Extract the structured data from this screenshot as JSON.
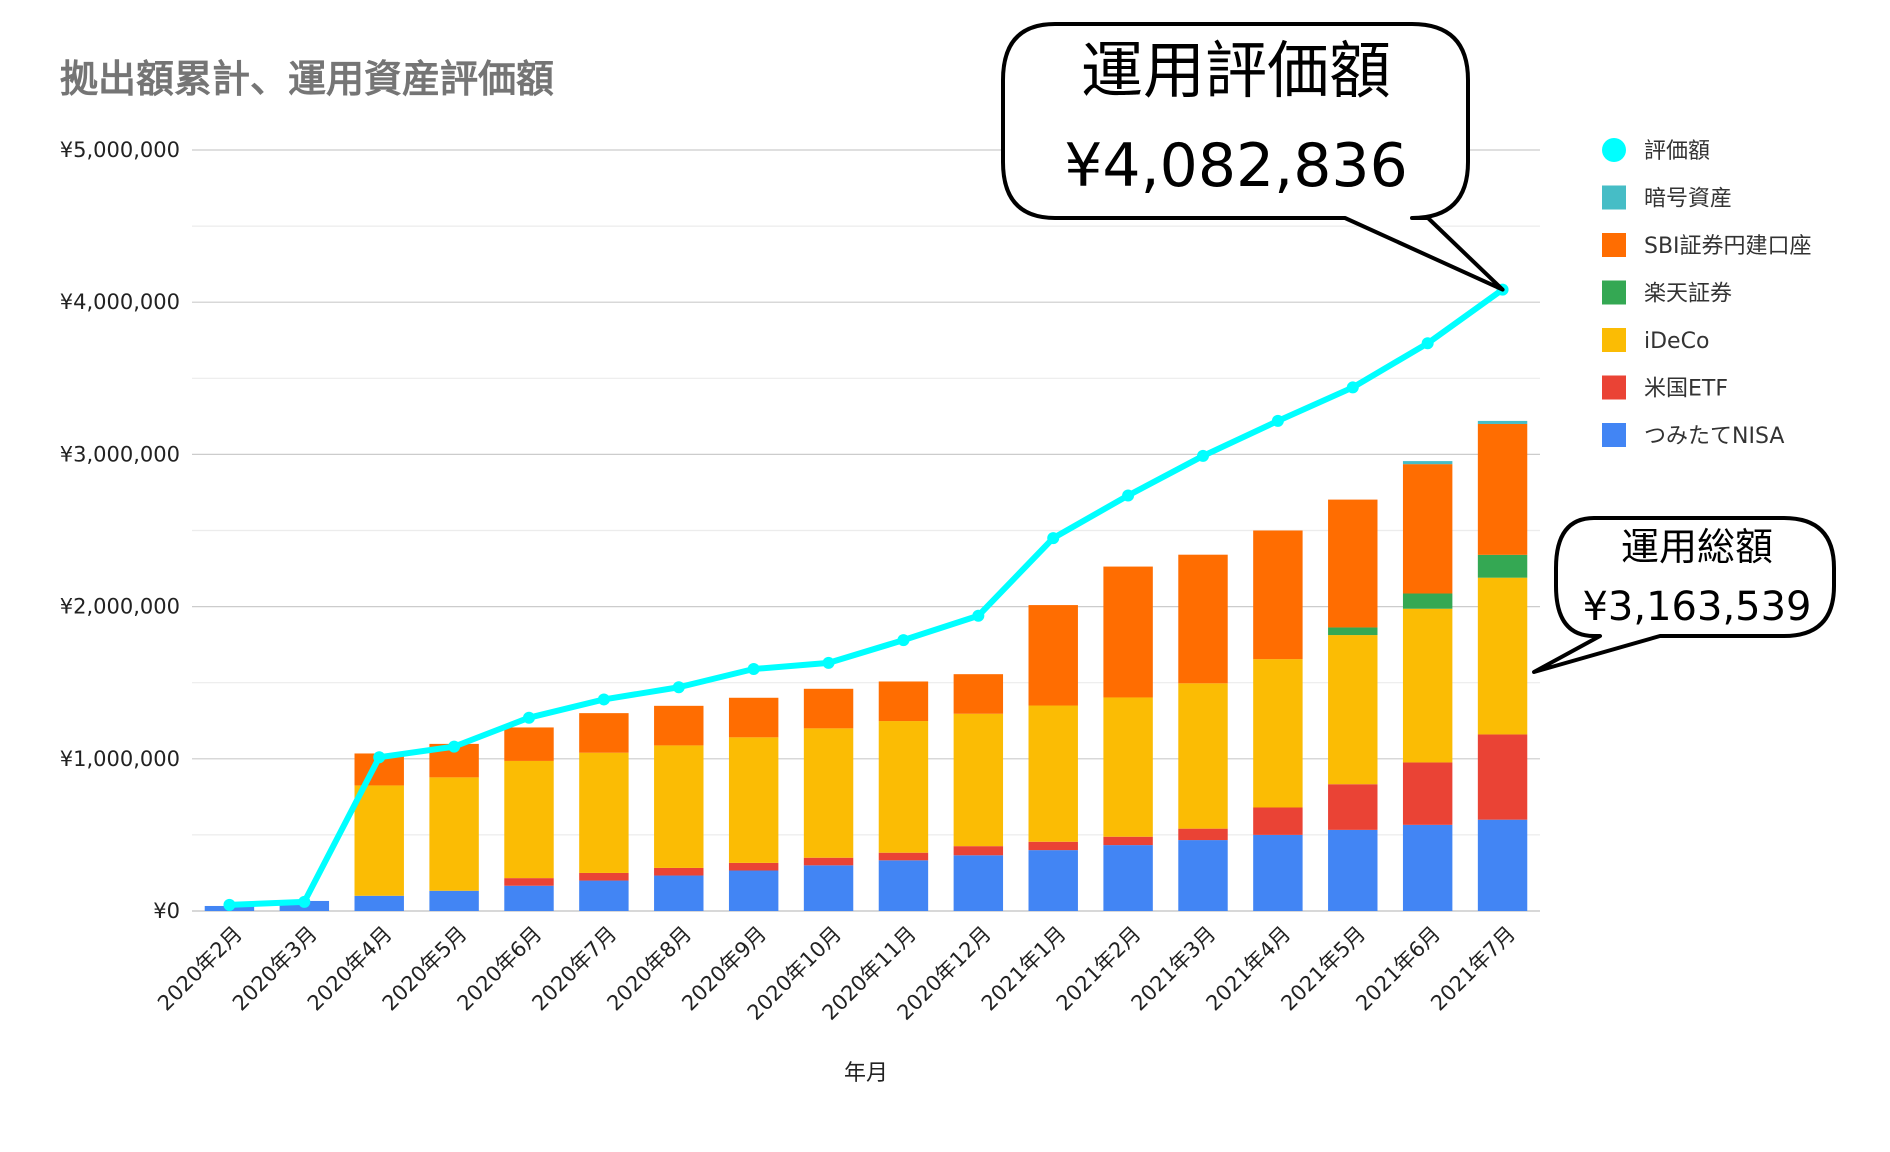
{
  "chart_data": {
    "type": "bar",
    "stacked": true,
    "title": "拠出額累計、運用資産評価額",
    "xlabel": "年月",
    "ylabel": "",
    "ylim": [
      0,
      5000000
    ],
    "yticks": [
      "¥0",
      "¥1,000,000",
      "¥2,000,000",
      "¥3,000,000",
      "¥4,000,000",
      "¥5,000,000"
    ],
    "grid": true,
    "legend_position": "right",
    "categories": [
      "2020年2月",
      "2020年3月",
      "2020年4月",
      "2020年5月",
      "2020年6月",
      "2020年7月",
      "2020年8月",
      "2020年9月",
      "2020年10月",
      "2020年11月",
      "2020年12月",
      "2021年1月",
      "2021年2月",
      "2021年3月",
      "2021年4月",
      "2021年5月",
      "2021年6月",
      "2021年7月"
    ],
    "series": [
      {
        "name": "つみたてNISA",
        "color": "#4285F4",
        "values": [
          33000,
          66000,
          100000,
          133000,
          166000,
          200000,
          233000,
          266000,
          300000,
          333000,
          366000,
          400000,
          433000,
          466000,
          500000,
          533000,
          566000,
          600000
        ]
      },
      {
        "name": "米国ETF",
        "color": "#EA4335",
        "values": [
          0,
          0,
          0,
          0,
          50000,
          50000,
          50000,
          50000,
          50000,
          50000,
          60000,
          55000,
          55000,
          75000,
          180000,
          300000,
          410000,
          560000
        ]
      },
      {
        "name": "iDeCo",
        "color": "#FBBC04",
        "values": [
          0,
          0,
          725000,
          745000,
          770000,
          790000,
          805000,
          825000,
          850000,
          865000,
          870000,
          895000,
          915000,
          955000,
          975000,
          980000,
          1010000,
          1030000
        ]
      },
      {
        "name": "楽天証券",
        "color": "#34A853",
        "values": [
          0,
          0,
          0,
          0,
          0,
          0,
          0,
          0,
          0,
          0,
          0,
          0,
          0,
          0,
          0,
          50000,
          100000,
          150000
        ]
      },
      {
        "name": "SBI証券円建口座",
        "color": "#FF6D01",
        "values": [
          0,
          0,
          210000,
          220000,
          220000,
          260000,
          260000,
          260000,
          260000,
          260000,
          260000,
          660000,
          860000,
          845000,
          845000,
          840000,
          850000,
          860000
        ]
      },
      {
        "name": "暗号資産",
        "color": "#46BDC6",
        "values": [
          0,
          0,
          0,
          0,
          0,
          0,
          0,
          0,
          0,
          0,
          0,
          0,
          0,
          0,
          0,
          0,
          20000,
          20000
        ]
      },
      {
        "name": "評価額",
        "type": "line",
        "color": "#00FFFF",
        "values": [
          40000,
          60000,
          1010000,
          1080000,
          1270000,
          1390000,
          1470000,
          1590000,
          1630000,
          1780000,
          1940000,
          2450000,
          2730000,
          2990000,
          3220000,
          3440000,
          3730000,
          4082836
        ]
      }
    ],
    "legend_order": [
      "評価額",
      "暗号資産",
      "SBI証券円建口座",
      "楽天証券",
      "iDeCo",
      "米国ETF",
      "つみたてNISA"
    ],
    "annotations": [
      {
        "label": "運用評価額",
        "value": "¥4,082,836"
      },
      {
        "label": "運用総額",
        "value": "¥3,163,539"
      }
    ]
  }
}
